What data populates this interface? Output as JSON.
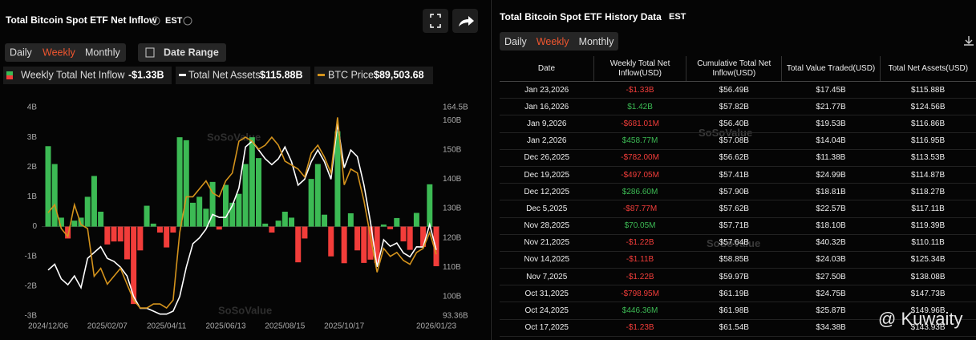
{
  "chart_data": {
    "type": "bar",
    "title": "Total Bitcoin Spot ETF Net Inflow",
    "timezone": "EST",
    "tabs": [
      "Daily",
      "Weekly",
      "Monthly"
    ],
    "date_range": "Date Range",
    "watermark": "SoSoValue",
    "categories": [
      "2024/12/06",
      null,
      null,
      null,
      null,
      null,
      null,
      null,
      null,
      "2025/02/07",
      null,
      null,
      null,
      null,
      null,
      null,
      null,
      null,
      "2025/04/11",
      null,
      null,
      null,
      null,
      null,
      null,
      null,
      null,
      "2025/06/13",
      null,
      null,
      null,
      null,
      null,
      null,
      null,
      null,
      "2025/08/15",
      null,
      null,
      null,
      null,
      null,
      null,
      null,
      null,
      "2025/10/17",
      null,
      null,
      null,
      null,
      null,
      null,
      null,
      null,
      null,
      null,
      null,
      null,
      null,
      "2026/01/23"
    ],
    "series": [
      {
        "name": "Weekly Total Net Inflow",
        "legend_value": "-$1.33B",
        "color": "#3cba54",
        "negative_color": "#f23d3a",
        "values": [
          2.7,
          2.1,
          0.3,
          -0.4,
          0.2,
          0.3,
          1.0,
          1.7,
          0.5,
          -0.6,
          -0.5,
          -0.5,
          -1.1,
          -2.6,
          -0.8,
          0.7,
          0.1,
          -0.2,
          -0.7,
          -0.2,
          3.0,
          2.9,
          0.8,
          1.0,
          0.6,
          1.5,
          -0.1,
          1.4,
          0.8,
          1.1,
          2.1,
          3.0,
          2.3,
          0.1,
          -0.2,
          0.2,
          0.5,
          0.3,
          -1.2,
          -0.4,
          1.6,
          2.1,
          0.4,
          -1.0,
          3.2,
          -1.23,
          0.446,
          -0.799,
          -1.22,
          -1.11,
          -1.22,
          0.07,
          -0.088,
          0.287,
          -0.497,
          -0.782,
          0.459,
          -0.681,
          1.42,
          -1.33
        ]
      },
      {
        "name": "Total Net Assets",
        "legend_value": "$115.88B",
        "color": "#ffffff",
        "axis": "y2",
        "values": [
          109,
          111,
          106,
          104,
          107,
          103,
          113,
          115,
          117,
          113,
          112,
          110,
          107,
          100,
          96,
          96,
          95,
          94,
          94,
          95,
          100,
          110,
          118,
          120,
          123,
          128,
          127,
          127,
          131,
          137,
          151,
          153,
          150,
          147,
          145,
          147,
          151,
          146,
          138,
          140,
          146,
          150,
          146,
          140,
          159,
          143.93,
          149.96,
          147.73,
          138.08,
          125.34,
          110.11,
          119.39,
          117.11,
          118.27,
          114.87,
          113.53,
          116.95,
          116.86,
          124.56,
          115.88
        ]
      },
      {
        "name": "BTC Price",
        "legend_value": "$89,503.68",
        "color": "#d4931c",
        "axis": "y3",
        "values": [
          100000,
          102000,
          96000,
          94000,
          102000,
          97000,
          96000,
          84000,
          86000,
          82000,
          84000,
          86000,
          82000,
          78000,
          76000,
          76000,
          77000,
          77000,
          76000,
          78000,
          95000,
          104000,
          104000,
          106000,
          108000,
          105000,
          104000,
          108000,
          110000,
          118000,
          119000,
          118000,
          116000,
          117000,
          119000,
          117000,
          113000,
          112000,
          111000,
          109000,
          115000,
          117000,
          114000,
          110000,
          124000,
          107000,
          111000,
          110000,
          103000,
          94000,
          85000,
          91000,
          89000,
          90000,
          88000,
          87000,
          90000,
          91000,
          95000,
          89503.68
        ]
      }
    ],
    "ylim": [
      -3,
      4
    ],
    "yticks": [
      {
        "value": 4,
        "label": "4B"
      },
      {
        "value": 3,
        "label": "3B"
      },
      {
        "value": 2,
        "label": "2B"
      },
      {
        "value": 1,
        "label": "1B"
      },
      0,
      {
        "value": -1,
        "label": "-1B"
      },
      {
        "value": -2,
        "label": "-2B"
      },
      {
        "value": -3,
        "label": "-3B"
      }
    ],
    "y2lim": [
      93.36,
      164.5
    ],
    "y2ticks": [
      {
        "value": 164.5,
        "label": "164.5B"
      },
      {
        "value": 160,
        "label": "160B"
      },
      {
        "value": 150,
        "label": "150B"
      },
      {
        "value": 140,
        "label": "140B"
      },
      {
        "value": 130,
        "label": "130B"
      },
      {
        "value": 120,
        "label": "120B"
      },
      {
        "value": 110,
        "label": "110B"
      },
      {
        "value": 100,
        "label": "100B"
      },
      {
        "value": 93.36,
        "label": "93.36B"
      }
    ],
    "y3lim": [
      74000,
      126500
    ]
  },
  "table": {
    "title": "Total Bitcoin Spot ETF History Data",
    "timezone": "EST",
    "tabs": [
      "Daily",
      "Weekly",
      "Monthly"
    ],
    "columns": [
      "Date",
      "Weekly Total Net Inflow(USD)",
      "Cumulative Total Net Inflow(USD)",
      "Total Value Traded(USD)",
      "Total Net Assets(USD)"
    ],
    "rows": [
      [
        "Jan 23,2026",
        "-$1.33B",
        "$56.49B",
        "$17.45B",
        "$115.88B"
      ],
      [
        "Jan 16,2026",
        "$1.42B",
        "$57.82B",
        "$21.77B",
        "$124.56B"
      ],
      [
        "Jan 9,2026",
        "-$681.01M",
        "$56.40B",
        "$19.53B",
        "$116.86B"
      ],
      [
        "Jan 2,2026",
        "$458.77M",
        "$57.08B",
        "$14.04B",
        "$116.95B"
      ],
      [
        "Dec 26,2025",
        "-$782.00M",
        "$56.62B",
        "$11.38B",
        "$113.53B"
      ],
      [
        "Dec 19,2025",
        "-$497.05M",
        "$57.41B",
        "$24.99B",
        "$114.87B"
      ],
      [
        "Dec 12,2025",
        "$286.60M",
        "$57.90B",
        "$18.81B",
        "$118.27B"
      ],
      [
        "Dec 5,2025",
        "-$87.77M",
        "$57.62B",
        "$22.57B",
        "$117.11B"
      ],
      [
        "Nov 28,2025",
        "$70.05M",
        "$57.71B",
        "$18.10B",
        "$119.39B"
      ],
      [
        "Nov 21,2025",
        "-$1.22B",
        "$57.64B",
        "$40.32B",
        "$110.11B"
      ],
      [
        "Nov 14,2025",
        "-$1.11B",
        "$58.85B",
        "$24.03B",
        "$125.34B"
      ],
      [
        "Nov 7,2025",
        "-$1.22B",
        "$59.97B",
        "$27.50B",
        "$138.08B"
      ],
      [
        "Oct 31,2025",
        "-$798.95M",
        "$61.19B",
        "$24.75B",
        "$147.73B"
      ],
      [
        "Oct 24,2025",
        "$446.36M",
        "$61.98B",
        "$25.87B",
        "$149.96B"
      ],
      [
        "Oct 17,2025",
        "-$1.23B",
        "$61.54B",
        "$34.38B",
        "$143.93B"
      ]
    ]
  },
  "overlay": "@ Kuwaity"
}
